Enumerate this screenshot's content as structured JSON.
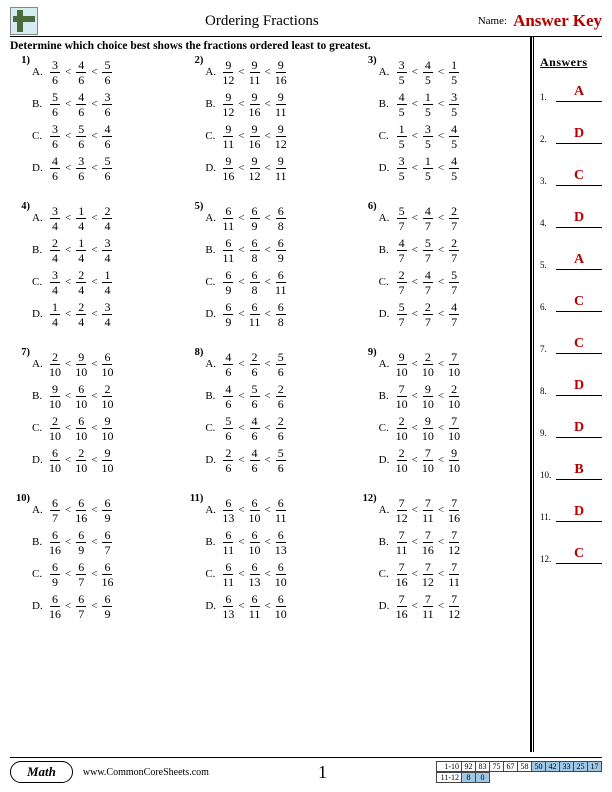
{
  "header": {
    "title": "Ordering Fractions",
    "name_label": "Name:",
    "answer_key": "Answer Key"
  },
  "instruction": "Determine which choice best shows the fractions ordered least to greatest.",
  "answers_heading": "Answers",
  "questions": [
    {
      "n": "1)",
      "choices": [
        {
          "l": "A.",
          "f": [
            [
              "3",
              "6"
            ],
            [
              "4",
              "6"
            ],
            [
              "5",
              "6"
            ]
          ]
        },
        {
          "l": "B.",
          "f": [
            [
              "5",
              "6"
            ],
            [
              "4",
              "6"
            ],
            [
              "3",
              "6"
            ]
          ]
        },
        {
          "l": "C.",
          "f": [
            [
              "3",
              "6"
            ],
            [
              "5",
              "6"
            ],
            [
              "4",
              "6"
            ]
          ]
        },
        {
          "l": "D.",
          "f": [
            [
              "4",
              "6"
            ],
            [
              "3",
              "6"
            ],
            [
              "5",
              "6"
            ]
          ]
        }
      ]
    },
    {
      "n": "2)",
      "choices": [
        {
          "l": "A.",
          "f": [
            [
              "9",
              "12"
            ],
            [
              "9",
              "11"
            ],
            [
              "9",
              "16"
            ]
          ]
        },
        {
          "l": "B.",
          "f": [
            [
              "9",
              "12"
            ],
            [
              "9",
              "16"
            ],
            [
              "9",
              "11"
            ]
          ]
        },
        {
          "l": "C.",
          "f": [
            [
              "9",
              "11"
            ],
            [
              "9",
              "16"
            ],
            [
              "9",
              "12"
            ]
          ]
        },
        {
          "l": "D.",
          "f": [
            [
              "9",
              "16"
            ],
            [
              "9",
              "12"
            ],
            [
              "9",
              "11"
            ]
          ]
        }
      ]
    },
    {
      "n": "3)",
      "choices": [
        {
          "l": "A.",
          "f": [
            [
              "3",
              "5"
            ],
            [
              "4",
              "5"
            ],
            [
              "1",
              "5"
            ]
          ]
        },
        {
          "l": "B.",
          "f": [
            [
              "4",
              "5"
            ],
            [
              "1",
              "5"
            ],
            [
              "3",
              "5"
            ]
          ]
        },
        {
          "l": "C.",
          "f": [
            [
              "1",
              "5"
            ],
            [
              "3",
              "5"
            ],
            [
              "4",
              "5"
            ]
          ]
        },
        {
          "l": "D.",
          "f": [
            [
              "3",
              "5"
            ],
            [
              "1",
              "5"
            ],
            [
              "4",
              "5"
            ]
          ]
        }
      ]
    },
    {
      "n": "4)",
      "choices": [
        {
          "l": "A.",
          "f": [
            [
              "3",
              "4"
            ],
            [
              "1",
              "4"
            ],
            [
              "2",
              "4"
            ]
          ]
        },
        {
          "l": "B.",
          "f": [
            [
              "2",
              "4"
            ],
            [
              "1",
              "4"
            ],
            [
              "3",
              "4"
            ]
          ]
        },
        {
          "l": "C.",
          "f": [
            [
              "3",
              "4"
            ],
            [
              "2",
              "4"
            ],
            [
              "1",
              "4"
            ]
          ]
        },
        {
          "l": "D.",
          "f": [
            [
              "1",
              "4"
            ],
            [
              "2",
              "4"
            ],
            [
              "3",
              "4"
            ]
          ]
        }
      ]
    },
    {
      "n": "5)",
      "choices": [
        {
          "l": "A.",
          "f": [
            [
              "6",
              "11"
            ],
            [
              "6",
              "9"
            ],
            [
              "6",
              "8"
            ]
          ]
        },
        {
          "l": "B.",
          "f": [
            [
              "6",
              "11"
            ],
            [
              "6",
              "8"
            ],
            [
              "6",
              "9"
            ]
          ]
        },
        {
          "l": "C.",
          "f": [
            [
              "6",
              "9"
            ],
            [
              "6",
              "8"
            ],
            [
              "6",
              "11"
            ]
          ]
        },
        {
          "l": "D.",
          "f": [
            [
              "6",
              "9"
            ],
            [
              "6",
              "11"
            ],
            [
              "6",
              "8"
            ]
          ]
        }
      ]
    },
    {
      "n": "6)",
      "choices": [
        {
          "l": "A.",
          "f": [
            [
              "5",
              "7"
            ],
            [
              "4",
              "7"
            ],
            [
              "2",
              "7"
            ]
          ]
        },
        {
          "l": "B.",
          "f": [
            [
              "4",
              "7"
            ],
            [
              "5",
              "7"
            ],
            [
              "2",
              "7"
            ]
          ]
        },
        {
          "l": "C.",
          "f": [
            [
              "2",
              "7"
            ],
            [
              "4",
              "7"
            ],
            [
              "5",
              "7"
            ]
          ]
        },
        {
          "l": "D.",
          "f": [
            [
              "5",
              "7"
            ],
            [
              "2",
              "7"
            ],
            [
              "4",
              "7"
            ]
          ]
        }
      ]
    },
    {
      "n": "7)",
      "choices": [
        {
          "l": "A.",
          "f": [
            [
              "2",
              "10"
            ],
            [
              "9",
              "10"
            ],
            [
              "6",
              "10"
            ]
          ]
        },
        {
          "l": "B.",
          "f": [
            [
              "9",
              "10"
            ],
            [
              "6",
              "10"
            ],
            [
              "2",
              "10"
            ]
          ]
        },
        {
          "l": "C.",
          "f": [
            [
              "2",
              "10"
            ],
            [
              "6",
              "10"
            ],
            [
              "9",
              "10"
            ]
          ]
        },
        {
          "l": "D.",
          "f": [
            [
              "6",
              "10"
            ],
            [
              "2",
              "10"
            ],
            [
              "9",
              "10"
            ]
          ]
        }
      ]
    },
    {
      "n": "8)",
      "choices": [
        {
          "l": "A.",
          "f": [
            [
              "4",
              "6"
            ],
            [
              "2",
              "6"
            ],
            [
              "5",
              "6"
            ]
          ]
        },
        {
          "l": "B.",
          "f": [
            [
              "4",
              "6"
            ],
            [
              "5",
              "6"
            ],
            [
              "2",
              "6"
            ]
          ]
        },
        {
          "l": "C.",
          "f": [
            [
              "5",
              "6"
            ],
            [
              "4",
              "6"
            ],
            [
              "2",
              "6"
            ]
          ]
        },
        {
          "l": "D.",
          "f": [
            [
              "2",
              "6"
            ],
            [
              "4",
              "6"
            ],
            [
              "5",
              "6"
            ]
          ]
        }
      ]
    },
    {
      "n": "9)",
      "choices": [
        {
          "l": "A.",
          "f": [
            [
              "9",
              "10"
            ],
            [
              "2",
              "10"
            ],
            [
              "7",
              "10"
            ]
          ]
        },
        {
          "l": "B.",
          "f": [
            [
              "7",
              "10"
            ],
            [
              "9",
              "10"
            ],
            [
              "2",
              "10"
            ]
          ]
        },
        {
          "l": "C.",
          "f": [
            [
              "2",
              "10"
            ],
            [
              "9",
              "10"
            ],
            [
              "7",
              "10"
            ]
          ]
        },
        {
          "l": "D.",
          "f": [
            [
              "2",
              "10"
            ],
            [
              "7",
              "10"
            ],
            [
              "9",
              "10"
            ]
          ]
        }
      ]
    },
    {
      "n": "10)",
      "choices": [
        {
          "l": "A.",
          "f": [
            [
              "6",
              "7"
            ],
            [
              "6",
              "16"
            ],
            [
              "6",
              "9"
            ]
          ]
        },
        {
          "l": "B.",
          "f": [
            [
              "6",
              "16"
            ],
            [
              "6",
              "9"
            ],
            [
              "6",
              "7"
            ]
          ]
        },
        {
          "l": "C.",
          "f": [
            [
              "6",
              "9"
            ],
            [
              "6",
              "7"
            ],
            [
              "6",
              "16"
            ]
          ]
        },
        {
          "l": "D.",
          "f": [
            [
              "6",
              "16"
            ],
            [
              "6",
              "7"
            ],
            [
              "6",
              "9"
            ]
          ]
        }
      ]
    },
    {
      "n": "11)",
      "choices": [
        {
          "l": "A.",
          "f": [
            [
              "6",
              "13"
            ],
            [
              "6",
              "10"
            ],
            [
              "6",
              "11"
            ]
          ]
        },
        {
          "l": "B.",
          "f": [
            [
              "6",
              "11"
            ],
            [
              "6",
              "10"
            ],
            [
              "6",
              "13"
            ]
          ]
        },
        {
          "l": "C.",
          "f": [
            [
              "6",
              "11"
            ],
            [
              "6",
              "13"
            ],
            [
              "6",
              "10"
            ]
          ]
        },
        {
          "l": "D.",
          "f": [
            [
              "6",
              "13"
            ],
            [
              "6",
              "11"
            ],
            [
              "6",
              "10"
            ]
          ]
        }
      ]
    },
    {
      "n": "12)",
      "choices": [
        {
          "l": "A.",
          "f": [
            [
              "7",
              "12"
            ],
            [
              "7",
              "11"
            ],
            [
              "7",
              "16"
            ]
          ]
        },
        {
          "l": "B.",
          "f": [
            [
              "7",
              "11"
            ],
            [
              "7",
              "16"
            ],
            [
              "7",
              "12"
            ]
          ]
        },
        {
          "l": "C.",
          "f": [
            [
              "7",
              "16"
            ],
            [
              "7",
              "12"
            ],
            [
              "7",
              "11"
            ]
          ]
        },
        {
          "l": "D.",
          "f": [
            [
              "7",
              "16"
            ],
            [
              "7",
              "11"
            ],
            [
              "7",
              "12"
            ]
          ]
        }
      ]
    }
  ],
  "answers": [
    "A",
    "D",
    "C",
    "D",
    "A",
    "C",
    "C",
    "D",
    "D",
    "B",
    "D",
    "C"
  ],
  "footer": {
    "subject": "Math",
    "url": "www.CommonCoreSheets.com",
    "page": "1",
    "score_rows": [
      {
        "lbl": "1-10",
        "cells": [
          "92",
          "83",
          "75",
          "67",
          "58",
          "50",
          "42",
          "33",
          "25",
          "17"
        ],
        "hl": 5
      },
      {
        "lbl": "11-12",
        "cells": [
          "8",
          "0"
        ],
        "hl": 0
      }
    ]
  },
  "colors": {
    "answer_red": "#b80000",
    "score_highlight": "#9fc7e6"
  }
}
